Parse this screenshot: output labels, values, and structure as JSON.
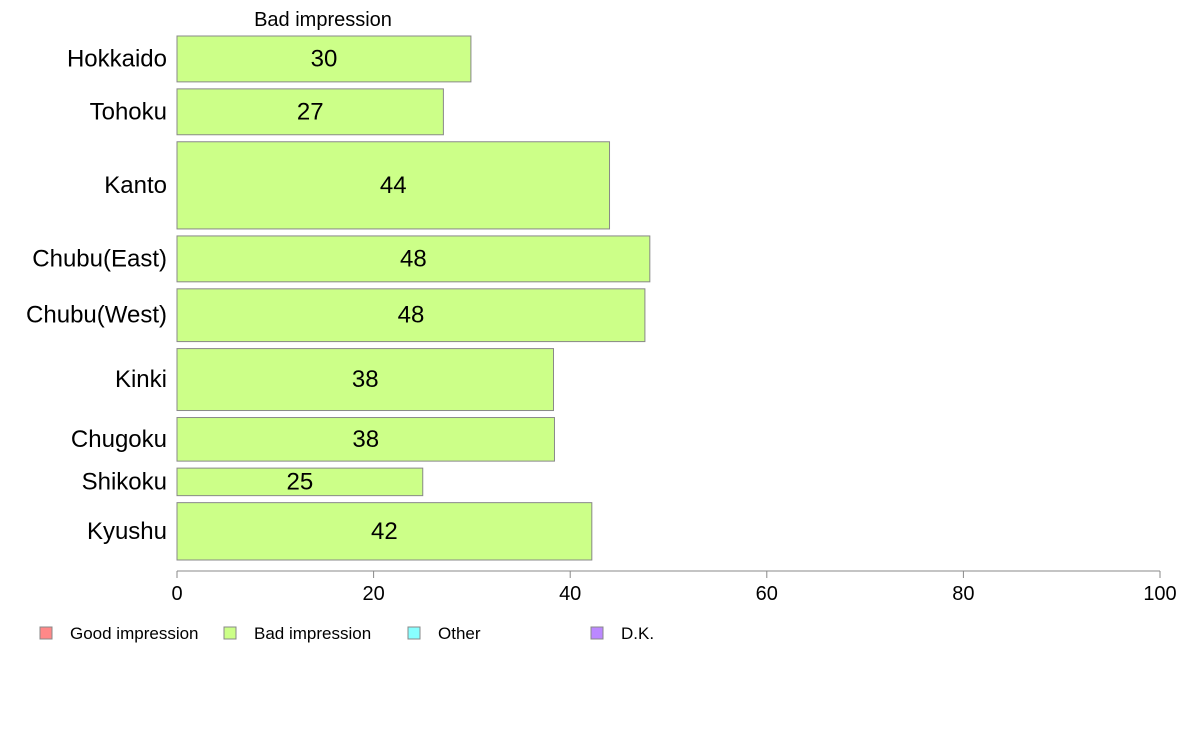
{
  "chart_data": {
    "type": "bar",
    "orientation": "horizontal",
    "panel_title": "Bad impression",
    "categories": [
      "Hokkaido",
      "Tohoku",
      "Kanto",
      "Chubu(East)",
      "Chubu(West)",
      "Kinki",
      "Chugoku",
      "Shikoku",
      "Kyushu"
    ],
    "series": [
      {
        "name": "Bad impression",
        "color": "#ccff88",
        "values": [
          29.9,
          27.1,
          44.0,
          48.1,
          47.6,
          38.3,
          38.4,
          25.0,
          42.2
        ],
        "labels": [
          "30",
          "27",
          "44",
          "48",
          "48",
          "38",
          "38",
          "25",
          "42"
        ]
      }
    ],
    "bar_widths_relative": [
      1.0,
      1.0,
      1.9,
      1.0,
      1.15,
      1.35,
      0.95,
      0.6,
      1.25
    ],
    "xlim": [
      0,
      100
    ],
    "xticks": [
      "0",
      "20",
      "40",
      "60",
      "80",
      "100"
    ],
    "xtick_values": [
      0,
      20,
      40,
      60,
      80,
      100
    ],
    "grid": false,
    "legend_position": "bottom-left",
    "legend": [
      {
        "label": "Good impression",
        "color": "#ff8888"
      },
      {
        "label": "Bad impression",
        "color": "#ccff88"
      },
      {
        "label": "Other",
        "color": "#88ffff"
      },
      {
        "label": "D.K.",
        "color": "#bb88ff"
      }
    ]
  }
}
